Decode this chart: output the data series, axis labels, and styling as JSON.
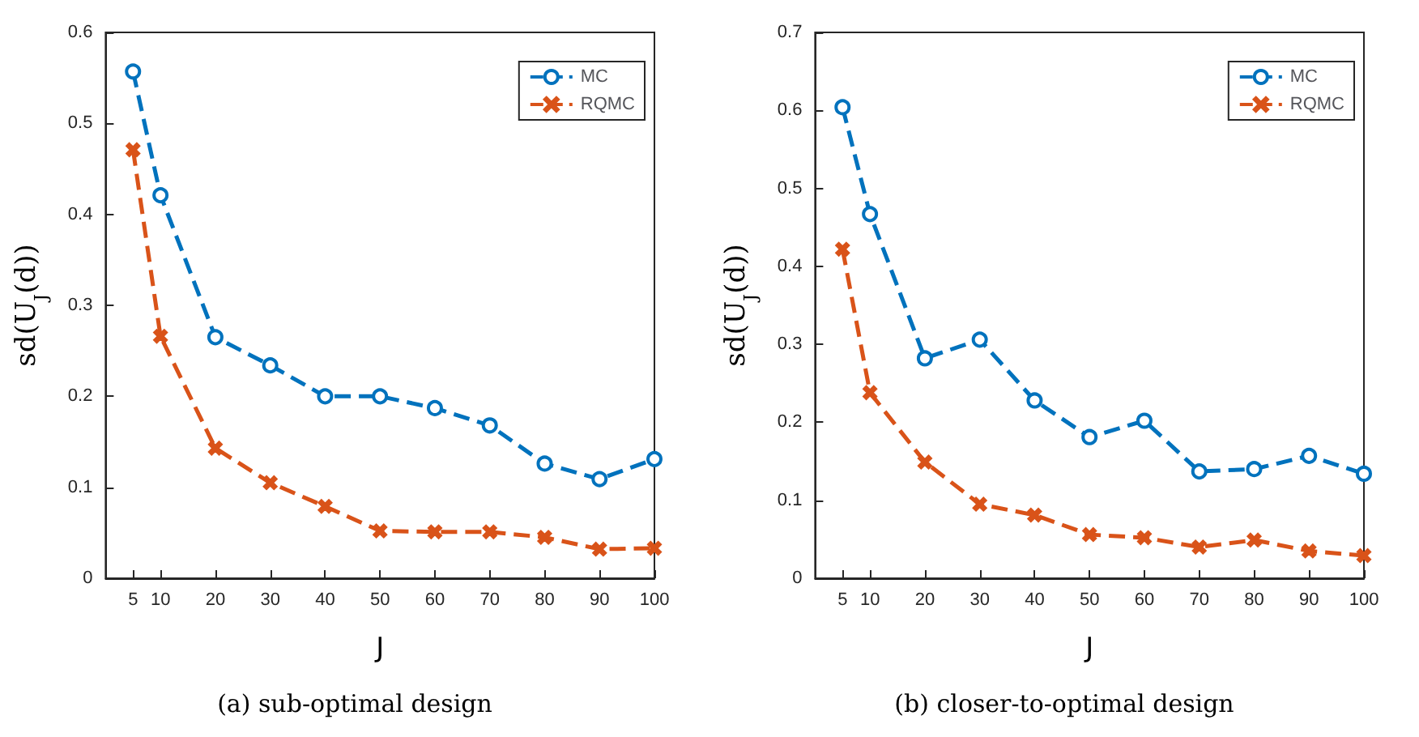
{
  "chart_data": [
    {
      "type": "line",
      "title": "(a) sub-optimal design",
      "xlabel": "J",
      "ylabel": "sd(U$_{J}$(d))",
      "x": [
        5,
        10,
        20,
        30,
        40,
        50,
        60,
        70,
        80,
        90,
        100
      ],
      "xlim": [
        0,
        100
      ],
      "xticks": [
        5,
        10,
        20,
        30,
        40,
        50,
        60,
        70,
        80,
        90,
        100
      ],
      "ylim": [
        0,
        0.6
      ],
      "yticks": [
        0,
        0.1,
        0.2,
        0.3,
        0.4,
        0.5,
        0.6
      ],
      "grid": false,
      "legend": "top right",
      "line_style": "dashed",
      "series": [
        {
          "name": "MC",
          "color": "#0072bd",
          "marker": "circle",
          "values": [
            0.557,
            0.421,
            0.265,
            0.234,
            0.2,
            0.2,
            0.187,
            0.168,
            0.126,
            0.109,
            0.131
          ]
        },
        {
          "name": "RQMC",
          "color": "#d95319",
          "marker": "cross",
          "values": [
            0.471,
            0.266,
            0.143,
            0.105,
            0.079,
            0.052,
            0.051,
            0.051,
            0.045,
            0.032,
            0.033
          ]
        }
      ]
    },
    {
      "type": "line",
      "title": "(b) closer-to-optimal design",
      "xlabel": "J",
      "ylabel": "sd(U$_{J}$(d))",
      "x": [
        5,
        10,
        20,
        30,
        40,
        50,
        60,
        70,
        80,
        90,
        100
      ],
      "xlim": [
        0,
        100
      ],
      "xticks": [
        5,
        10,
        20,
        30,
        40,
        50,
        60,
        70,
        80,
        90,
        100
      ],
      "ylim": [
        0,
        0.7
      ],
      "yticks": [
        0,
        0.1,
        0.2,
        0.3,
        0.4,
        0.5,
        0.6,
        0.7
      ],
      "grid": false,
      "legend": "top right",
      "line_style": "dashed",
      "series": [
        {
          "name": "MC",
          "color": "#0072bd",
          "marker": "circle",
          "values": [
            0.604,
            0.467,
            0.282,
            0.306,
            0.228,
            0.181,
            0.202,
            0.137,
            0.14,
            0.157,
            0.134
          ]
        },
        {
          "name": "RQMC",
          "color": "#d95319",
          "marker": "cross",
          "values": [
            0.422,
            0.238,
            0.149,
            0.095,
            0.081,
            0.056,
            0.052,
            0.04,
            0.049,
            0.035,
            0.029
          ]
        }
      ]
    }
  ]
}
